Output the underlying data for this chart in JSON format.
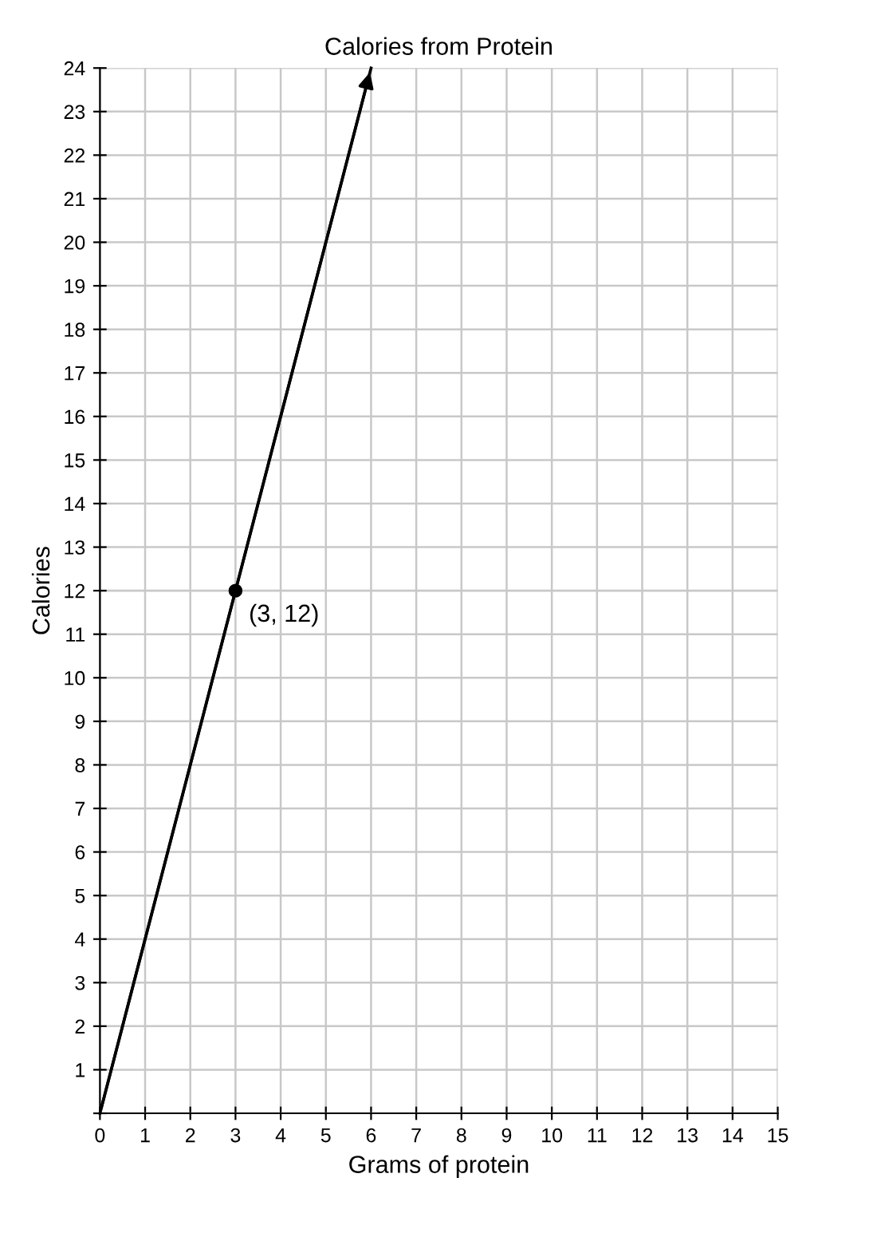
{
  "chart_data": {
    "type": "line",
    "title": "Calories from Protein",
    "xlabel": "Grams of protein",
    "ylabel": "Calories",
    "series": [
      {
        "x": [
          0,
          6
        ],
        "values": [
          0,
          24
        ],
        "color": "#000000",
        "line_style": "solid"
      },
      {
        "type": "scatter",
        "x": [
          3
        ],
        "values": [
          12
        ],
        "color": "#000000",
        "marker": "circle"
      }
    ],
    "annotations": [
      {
        "text": "(3, 12)",
        "x": 3,
        "y": 12
      }
    ],
    "xlim": [
      0,
      15
    ],
    "ylim": [
      0,
      24
    ],
    "xticks": [
      0,
      1,
      2,
      3,
      4,
      5,
      6,
      7,
      8,
      9,
      10,
      11,
      12,
      13,
      14,
      15
    ],
    "yticks": [
      {
        "value": 0,
        "label": null
      },
      1,
      2,
      3,
      4,
      5,
      6,
      7,
      8,
      9,
      10,
      11,
      12,
      13,
      14,
      15,
      16,
      17,
      18,
      19,
      20,
      21,
      22,
      23,
      24
    ],
    "grid": true,
    "legend": false
  }
}
